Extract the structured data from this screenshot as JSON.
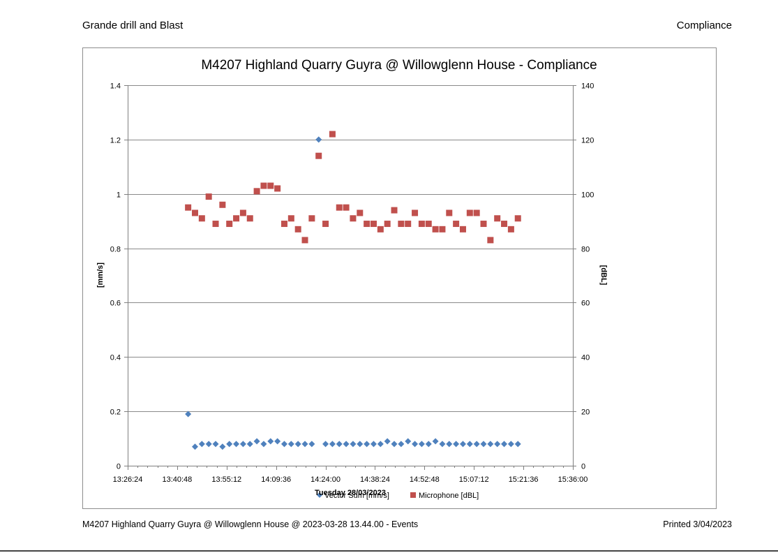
{
  "header": {
    "left": "Grande drill and Blast",
    "right": "Compliance"
  },
  "footer": {
    "left": "M4207 Highland Quarry Guyra @ Willowglenn House @ 2023-03-28 13.44.00 - Events",
    "right": "Printed 3/04/2023"
  },
  "chart_data": {
    "type": "scatter",
    "title": "M4207 Highland Quarry Guyra @ Willowglenn House  - Compliance",
    "xlabel": "Tuesday 28/03/2023",
    "ylabel": "[mm/s]",
    "y2label": "[dBL]",
    "xlim": [
      "13:26:24",
      "15:36:00"
    ],
    "ylim": [
      0,
      1.4
    ],
    "y2lim": [
      0,
      140
    ],
    "x_ticks": [
      "13:26:24",
      "13:40:48",
      "13:55:12",
      "14:09:36",
      "14:24:00",
      "14:38:24",
      "14:52:48",
      "15:07:12",
      "15:21:36",
      "15:36:00"
    ],
    "y_ticks": [
      "0",
      "0.2",
      "0.4",
      "0.6",
      "0.8",
      "1",
      "1.2",
      "1.4"
    ],
    "y2_ticks": [
      "0",
      "20",
      "40",
      "60",
      "80",
      "100",
      "120",
      "140"
    ],
    "grid": true,
    "legend_position": "bottom",
    "series": [
      {
        "name": "Vector Sum [mm/s]",
        "axis": "left",
        "color": "#4f81bd",
        "marker": "diamond",
        "points": [
          [
            "13:44:00",
            0.19
          ],
          [
            "13:46:00",
            0.07
          ],
          [
            "13:48:00",
            0.08
          ],
          [
            "13:50:00",
            0.08
          ],
          [
            "13:52:00",
            0.08
          ],
          [
            "13:54:00",
            0.07
          ],
          [
            "13:56:00",
            0.08
          ],
          [
            "13:58:00",
            0.08
          ],
          [
            "14:00:00",
            0.08
          ],
          [
            "14:02:00",
            0.08
          ],
          [
            "14:04:00",
            0.09
          ],
          [
            "14:06:00",
            0.08
          ],
          [
            "14:08:00",
            0.09
          ],
          [
            "14:10:00",
            0.09
          ],
          [
            "14:12:00",
            0.08
          ],
          [
            "14:14:00",
            0.08
          ],
          [
            "14:16:00",
            0.08
          ],
          [
            "14:18:00",
            0.08
          ],
          [
            "14:20:00",
            0.08
          ],
          [
            "14:22:00",
            1.2
          ],
          [
            "14:24:00",
            0.08
          ],
          [
            "14:26:00",
            0.08
          ],
          [
            "14:28:00",
            0.08
          ],
          [
            "14:30:00",
            0.08
          ],
          [
            "14:32:00",
            0.08
          ],
          [
            "14:34:00",
            0.08
          ],
          [
            "14:36:00",
            0.08
          ],
          [
            "14:38:00",
            0.08
          ],
          [
            "14:40:00",
            0.08
          ],
          [
            "14:42:00",
            0.09
          ],
          [
            "14:44:00",
            0.08
          ],
          [
            "14:46:00",
            0.08
          ],
          [
            "14:48:00",
            0.09
          ],
          [
            "14:50:00",
            0.08
          ],
          [
            "14:52:00",
            0.08
          ],
          [
            "14:54:00",
            0.08
          ],
          [
            "14:56:00",
            0.09
          ],
          [
            "14:58:00",
            0.08
          ],
          [
            "15:00:00",
            0.08
          ],
          [
            "15:02:00",
            0.08
          ],
          [
            "15:04:00",
            0.08
          ],
          [
            "15:06:00",
            0.08
          ],
          [
            "15:08:00",
            0.08
          ],
          [
            "15:10:00",
            0.08
          ],
          [
            "15:12:00",
            0.08
          ],
          [
            "15:14:00",
            0.08
          ],
          [
            "15:16:00",
            0.08
          ],
          [
            "15:18:00",
            0.08
          ],
          [
            "15:20:00",
            0.08
          ]
        ]
      },
      {
        "name": "Microphone [dBL]",
        "axis": "right",
        "color": "#c0504d",
        "marker": "square",
        "points": [
          [
            "13:44:00",
            95
          ],
          [
            "13:46:00",
            93
          ],
          [
            "13:48:00",
            91
          ],
          [
            "13:50:00",
            99
          ],
          [
            "13:52:00",
            89
          ],
          [
            "13:54:00",
            96
          ],
          [
            "13:56:00",
            89
          ],
          [
            "13:58:00",
            91
          ],
          [
            "14:00:00",
            93
          ],
          [
            "14:02:00",
            91
          ],
          [
            "14:04:00",
            101
          ],
          [
            "14:06:00",
            103
          ],
          [
            "14:08:00",
            103
          ],
          [
            "14:10:00",
            102
          ],
          [
            "14:12:00",
            89
          ],
          [
            "14:14:00",
            91
          ],
          [
            "14:16:00",
            87
          ],
          [
            "14:18:00",
            83
          ],
          [
            "14:20:00",
            91
          ],
          [
            "14:22:00",
            114
          ],
          [
            "14:24:00",
            89
          ],
          [
            "14:26:00",
            122
          ],
          [
            "14:28:00",
            95
          ],
          [
            "14:30:00",
            95
          ],
          [
            "14:32:00",
            91
          ],
          [
            "14:34:00",
            93
          ],
          [
            "14:36:00",
            89
          ],
          [
            "14:38:00",
            89
          ],
          [
            "14:40:00",
            87
          ],
          [
            "14:42:00",
            89
          ],
          [
            "14:44:00",
            94
          ],
          [
            "14:46:00",
            89
          ],
          [
            "14:48:00",
            89
          ],
          [
            "14:50:00",
            93
          ],
          [
            "14:52:00",
            89
          ],
          [
            "14:54:00",
            89
          ],
          [
            "14:56:00",
            87
          ],
          [
            "14:58:00",
            87
          ],
          [
            "15:00:00",
            93
          ],
          [
            "15:02:00",
            89
          ],
          [
            "15:04:00",
            87
          ],
          [
            "15:06:00",
            93
          ],
          [
            "15:08:00",
            93
          ],
          [
            "15:10:00",
            89
          ],
          [
            "15:12:00",
            83
          ],
          [
            "15:14:00",
            91
          ],
          [
            "15:16:00",
            89
          ],
          [
            "15:18:00",
            87
          ],
          [
            "15:20:00",
            91
          ]
        ]
      }
    ]
  }
}
